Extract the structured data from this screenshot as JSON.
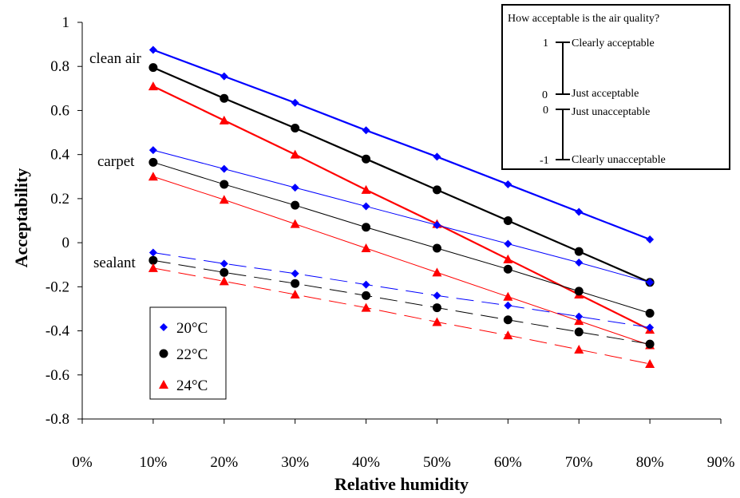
{
  "chart_data": {
    "type": "line",
    "xlabel": "Relative humidity",
    "ylabel": "Acceptability",
    "xlim": [
      0,
      90
    ],
    "ylim": [
      -0.8,
      1
    ],
    "x_ticks": [
      "0%",
      "10%",
      "20%",
      "30%",
      "40%",
      "50%",
      "60%",
      "70%",
      "80%",
      "90%"
    ],
    "y_ticks": [
      "-0.8",
      "-0.6",
      "-0.4",
      "-0.2",
      "0",
      "0.2",
      "0.4",
      "0.6",
      "0.8",
      "1"
    ],
    "x": [
      10,
      20,
      30,
      40,
      50,
      60,
      70,
      80
    ],
    "legend": {
      "placement": "lower-left",
      "entries": [
        {
          "label": "20°C",
          "color": "#0000ff",
          "marker": "diamond"
        },
        {
          "label": "22°C",
          "color": "#000000",
          "marker": "circle"
        },
        {
          "label": "24°C",
          "color": "#ff0000",
          "marker": "triangle"
        }
      ]
    },
    "groups": [
      {
        "label": "clean air",
        "line_style": "thick-solid"
      },
      {
        "label": "carpet",
        "line_style": "thin-solid"
      },
      {
        "label": "sealant",
        "line_style": "dashed"
      }
    ],
    "series": [
      {
        "group": 0,
        "temperature": 0,
        "values": [
          0.875,
          0.755,
          0.635,
          0.51,
          0.39,
          0.265,
          0.14,
          0.015
        ]
      },
      {
        "group": 0,
        "temperature": 1,
        "values": [
          0.795,
          0.655,
          0.52,
          0.38,
          0.24,
          0.1,
          -0.04,
          -0.18
        ]
      },
      {
        "group": 0,
        "temperature": 2,
        "values": [
          0.71,
          0.555,
          0.4,
          0.24,
          0.085,
          -0.075,
          -0.235,
          -0.395
        ]
      },
      {
        "group": 1,
        "temperature": 0,
        "values": [
          0.42,
          0.335,
          0.25,
          0.165,
          0.08,
          -0.005,
          -0.09,
          -0.18
        ]
      },
      {
        "group": 1,
        "temperature": 1,
        "values": [
          0.365,
          0.265,
          0.17,
          0.07,
          -0.025,
          -0.12,
          -0.22,
          -0.32
        ]
      },
      {
        "group": 1,
        "temperature": 2,
        "values": [
          0.3,
          0.195,
          0.085,
          -0.025,
          -0.135,
          -0.245,
          -0.355,
          -0.465
        ]
      },
      {
        "group": 2,
        "temperature": 0,
        "values": [
          -0.045,
          -0.095,
          -0.14,
          -0.19,
          -0.24,
          -0.285,
          -0.335,
          -0.385
        ]
      },
      {
        "group": 2,
        "temperature": 1,
        "values": [
          -0.08,
          -0.135,
          -0.185,
          -0.24,
          -0.295,
          -0.35,
          -0.405,
          -0.46
        ]
      },
      {
        "group": 2,
        "temperature": 2,
        "values": [
          -0.115,
          -0.175,
          -0.235,
          -0.295,
          -0.36,
          -0.42,
          -0.485,
          -0.55
        ]
      }
    ],
    "scale_box": {
      "title": "How acceptable is the air quality?",
      "upper": {
        "top_value": "1",
        "top_label": "Clearly acceptable",
        "bottom_value": "0",
        "bottom_label": "Just acceptable"
      },
      "lower": {
        "top_value": "0",
        "top_label": "Just unacceptable",
        "bottom_value": "-1",
        "bottom_label": "Clearly unacceptable"
      }
    }
  }
}
